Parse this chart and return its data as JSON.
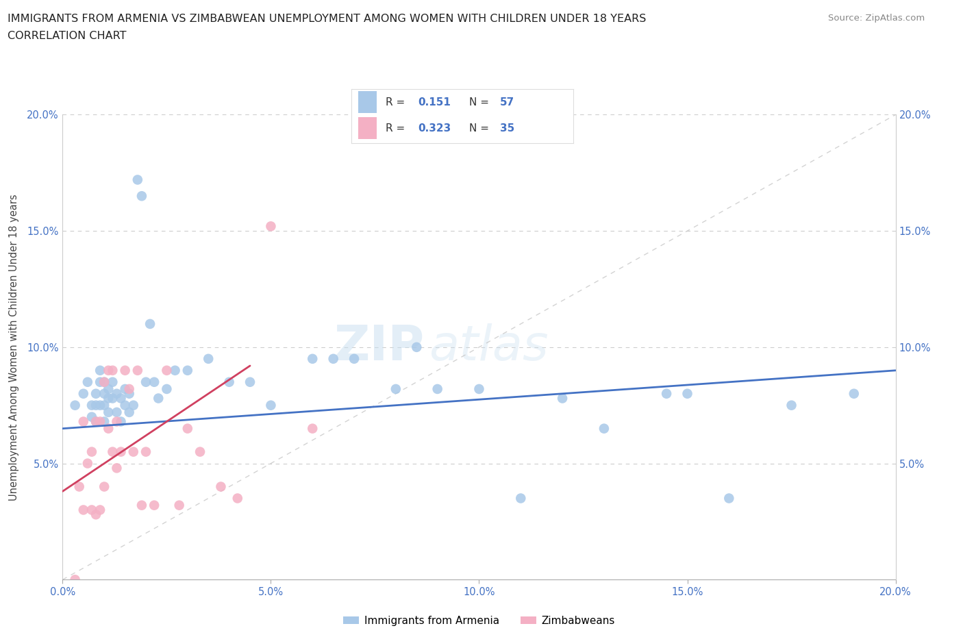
{
  "title_line1": "IMMIGRANTS FROM ARMENIA VS ZIMBABWEAN UNEMPLOYMENT AMONG WOMEN WITH CHILDREN UNDER 18 YEARS",
  "title_line2": "CORRELATION CHART",
  "source_text": "Source: ZipAtlas.com",
  "ylabel": "Unemployment Among Women with Children Under 18 years",
  "r_armenia": 0.151,
  "n_armenia": 57,
  "r_zimbabwe": 0.323,
  "n_zimbabwe": 35,
  "xlim": [
    0.0,
    0.2
  ],
  "ylim": [
    0.0,
    0.2
  ],
  "xticks": [
    0.0,
    0.05,
    0.1,
    0.15,
    0.2
  ],
  "yticks": [
    0.0,
    0.05,
    0.1,
    0.15,
    0.2
  ],
  "xtick_labels": [
    "0.0%",
    "5.0%",
    "10.0%",
    "15.0%",
    "20.0%"
  ],
  "ytick_labels_left": [
    "",
    "5.0%",
    "10.0%",
    "15.0%",
    "20.0%"
  ],
  "ytick_labels_right": [
    "",
    "5.0%",
    "10.0%",
    "15.0%",
    "20.0%"
  ],
  "color_armenia": "#a8c8e8",
  "color_zimbabwe": "#f4b0c4",
  "color_armenia_line": "#4472c4",
  "color_zimbabwe_line": "#d04060",
  "color_diagonal": "#c8c8c8",
  "watermark_zip": "ZIP",
  "watermark_atlas": "atlas",
  "armenia_x": [
    0.003,
    0.005,
    0.006,
    0.007,
    0.007,
    0.008,
    0.008,
    0.008,
    0.009,
    0.009,
    0.009,
    0.01,
    0.01,
    0.01,
    0.01,
    0.011,
    0.011,
    0.011,
    0.012,
    0.012,
    0.013,
    0.013,
    0.014,
    0.014,
    0.015,
    0.015,
    0.016,
    0.016,
    0.017,
    0.018,
    0.019,
    0.02,
    0.021,
    0.022,
    0.023,
    0.025,
    0.027,
    0.03,
    0.035,
    0.04,
    0.045,
    0.05,
    0.06,
    0.065,
    0.07,
    0.08,
    0.085,
    0.09,
    0.1,
    0.11,
    0.12,
    0.13,
    0.145,
    0.15,
    0.16,
    0.175,
    0.19
  ],
  "armenia_y": [
    0.075,
    0.08,
    0.085,
    0.075,
    0.07,
    0.08,
    0.075,
    0.068,
    0.09,
    0.085,
    0.075,
    0.085,
    0.08,
    0.075,
    0.068,
    0.082,
    0.078,
    0.072,
    0.085,
    0.078,
    0.08,
    0.072,
    0.078,
    0.068,
    0.082,
    0.075,
    0.08,
    0.072,
    0.075,
    0.172,
    0.165,
    0.085,
    0.11,
    0.085,
    0.078,
    0.082,
    0.09,
    0.09,
    0.095,
    0.085,
    0.085,
    0.075,
    0.095,
    0.095,
    0.095,
    0.082,
    0.1,
    0.082,
    0.082,
    0.035,
    0.078,
    0.065,
    0.08,
    0.08,
    0.035,
    0.075,
    0.08
  ],
  "zimbabwe_x": [
    0.003,
    0.004,
    0.005,
    0.005,
    0.006,
    0.007,
    0.007,
    0.008,
    0.008,
    0.009,
    0.009,
    0.01,
    0.01,
    0.011,
    0.011,
    0.012,
    0.012,
    0.013,
    0.013,
    0.014,
    0.015,
    0.016,
    0.017,
    0.018,
    0.019,
    0.02,
    0.022,
    0.025,
    0.028,
    0.03,
    0.033,
    0.038,
    0.042,
    0.05,
    0.06
  ],
  "zimbabwe_y": [
    0.0,
    0.04,
    0.03,
    0.068,
    0.05,
    0.03,
    0.055,
    0.028,
    0.068,
    0.03,
    0.068,
    0.04,
    0.085,
    0.065,
    0.09,
    0.055,
    0.09,
    0.048,
    0.068,
    0.055,
    0.09,
    0.082,
    0.055,
    0.09,
    0.032,
    0.055,
    0.032,
    0.09,
    0.032,
    0.065,
    0.055,
    0.04,
    0.035,
    0.152,
    0.065
  ],
  "armenia_line_x": [
    0.0,
    0.2
  ],
  "armenia_line_y": [
    0.065,
    0.09
  ],
  "zimbabwe_line_x": [
    0.0,
    0.045
  ],
  "zimbabwe_line_y": [
    0.038,
    0.092
  ]
}
